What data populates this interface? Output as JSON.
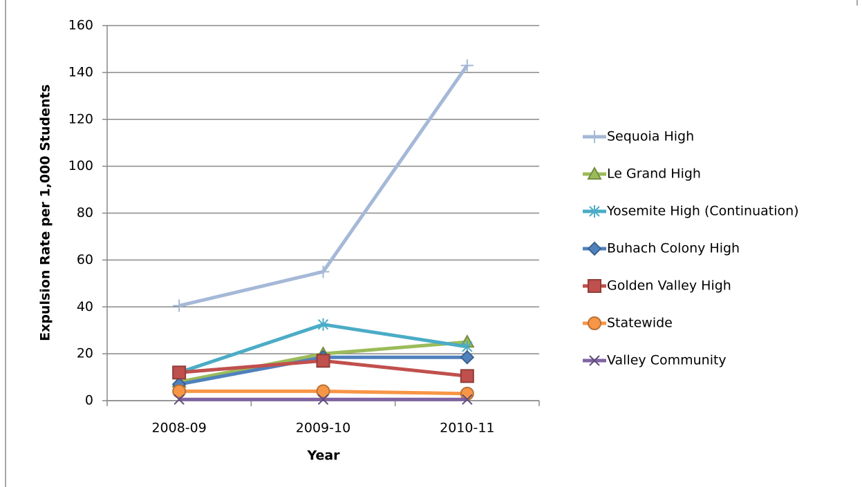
{
  "chart_data": {
    "type": "line",
    "x_label": "Year",
    "y_label": "Expulsion Rate per 1,000 Students",
    "categories": [
      "2008-09",
      "2009-10",
      "2010-11"
    ],
    "ylim": [
      0,
      160
    ],
    "yticks": [
      0,
      20,
      40,
      60,
      80,
      100,
      120,
      140,
      160
    ],
    "grid": true,
    "legend": "right",
    "series": [
      {
        "name": "Sequoia High",
        "color": "#a5b8d7",
        "marker": "plus",
        "values": [
          40.5,
          55,
          143
        ]
      },
      {
        "name": "Le Grand High",
        "color": "#9bbb59",
        "marker": "triangle",
        "values": [
          8,
          20,
          25
        ]
      },
      {
        "name": "Yosemite High (Continuation)",
        "color": "#4bacc6",
        "marker": "star",
        "values": [
          12,
          32.5,
          23
        ]
      },
      {
        "name": "Buhach Colony High",
        "color": "#4f81bd",
        "marker": "diamond",
        "values": [
          7,
          18.5,
          18.5
        ]
      },
      {
        "name": "Golden Valley High",
        "color": "#c0504d",
        "marker": "square",
        "values": [
          12,
          17,
          10.5
        ]
      },
      {
        "name": "Statewide",
        "color": "#f79646",
        "marker": "circle",
        "values": [
          4,
          4,
          3
        ]
      },
      {
        "name": "Valley Community",
        "color": "#8064a2",
        "marker": "x",
        "values": [
          0.5,
          0.5,
          0.5
        ]
      }
    ]
  }
}
